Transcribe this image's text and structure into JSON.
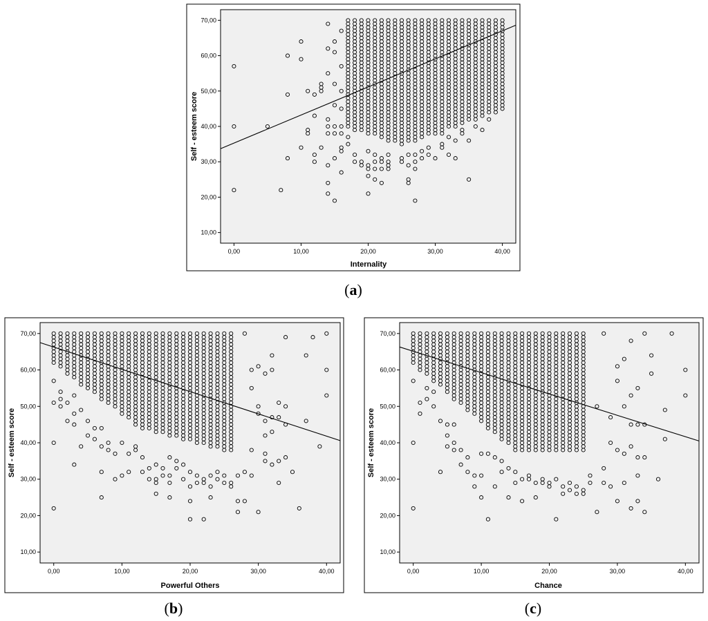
{
  "chart_data": [
    {
      "type": "scatter",
      "panel_label": "(a)",
      "panel_letter": "a",
      "xlabel": "Internality",
      "ylabel": "Self - esteem score",
      "xlim": [
        -2,
        42
      ],
      "ylim": [
        7,
        73
      ],
      "xticks": [
        0,
        10,
        20,
        30,
        40
      ],
      "xtick_labels": [
        "0,00",
        "10,00",
        "20,00",
        "30,00",
        "40,00"
      ],
      "yticks": [
        10,
        20,
        30,
        40,
        50,
        60,
        70
      ],
      "ytick_labels": [
        "10,00",
        "20,00",
        "30,00",
        "40,00",
        "50,00",
        "60,00",
        "70,00"
      ],
      "fit_line": {
        "x": [
          -2,
          42
        ],
        "y": [
          33.7,
          68.6
        ]
      },
      "dense": {
        "x_range": [
          17,
          40
        ],
        "y_max": 70,
        "y_min_ends": [
          40,
          45
        ],
        "y_min_mid": 35,
        "y_min_mid_x": 25
      },
      "points": [
        [
          0,
          57
        ],
        [
          0,
          40
        ],
        [
          0,
          22
        ],
        [
          5,
          40
        ],
        [
          7,
          22
        ],
        [
          8,
          60
        ],
        [
          8,
          49
        ],
        [
          8,
          31
        ],
        [
          10,
          64
        ],
        [
          10,
          59
        ],
        [
          10,
          34
        ],
        [
          11,
          50
        ],
        [
          11,
          39
        ],
        [
          11,
          38
        ],
        [
          12,
          49
        ],
        [
          12,
          43
        ],
        [
          12,
          32
        ],
        [
          12,
          30
        ],
        [
          13,
          52
        ],
        [
          13,
          51
        ],
        [
          13,
          50
        ],
        [
          13,
          34
        ],
        [
          14,
          69
        ],
        [
          14,
          62
        ],
        [
          14,
          55
        ],
        [
          14,
          42
        ],
        [
          14,
          40
        ],
        [
          14,
          38
        ],
        [
          14,
          29
        ],
        [
          14,
          24
        ],
        [
          14,
          21
        ],
        [
          15,
          64
        ],
        [
          15,
          61
        ],
        [
          15,
          52
        ],
        [
          15,
          46
        ],
        [
          15,
          40
        ],
        [
          15,
          38
        ],
        [
          15,
          31
        ],
        [
          15,
          19
        ],
        [
          16,
          67
        ],
        [
          16,
          57
        ],
        [
          16,
          50
        ],
        [
          16,
          45
        ],
        [
          16,
          40
        ],
        [
          16,
          38
        ],
        [
          16,
          34
        ],
        [
          16,
          33
        ],
        [
          16,
          27
        ],
        [
          17,
          69
        ],
        [
          17,
          62
        ],
        [
          17,
          37
        ],
        [
          17,
          35
        ],
        [
          18,
          32
        ],
        [
          18,
          30
        ],
        [
          19,
          30
        ],
        [
          19,
          29
        ],
        [
          20,
          33
        ],
        [
          20,
          29
        ],
        [
          20,
          28
        ],
        [
          20,
          26
        ],
        [
          20,
          21
        ],
        [
          21,
          32
        ],
        [
          21,
          30
        ],
        [
          21,
          28
        ],
        [
          21,
          25
        ],
        [
          22,
          31
        ],
        [
          22,
          30
        ],
        [
          22,
          28
        ],
        [
          22,
          24
        ],
        [
          23,
          32
        ],
        [
          23,
          30
        ],
        [
          23,
          29
        ],
        [
          23,
          28
        ],
        [
          25,
          31
        ],
        [
          25,
          30
        ],
        [
          26,
          32
        ],
        [
          26,
          29
        ],
        [
          26,
          25
        ],
        [
          26,
          24
        ],
        [
          27,
          32
        ],
        [
          27,
          30
        ],
        [
          27,
          28
        ],
        [
          27,
          19
        ],
        [
          28,
          33
        ],
        [
          28,
          31
        ],
        [
          29,
          34
        ],
        [
          29,
          32
        ],
        [
          30,
          31
        ],
        [
          31,
          38
        ],
        [
          31,
          35
        ],
        [
          31,
          34
        ],
        [
          32,
          37
        ],
        [
          32,
          32
        ],
        [
          33,
          36
        ],
        [
          33,
          31
        ],
        [
          34,
          39
        ],
        [
          34,
          38
        ],
        [
          35,
          36
        ],
        [
          35,
          25
        ],
        [
          36,
          40
        ],
        [
          37,
          39
        ],
        [
          38,
          42
        ],
        [
          39,
          58
        ],
        [
          39,
          53
        ],
        [
          40,
          60
        ],
        [
          40,
          53
        ]
      ]
    },
    {
      "type": "scatter",
      "panel_label": "(b)",
      "panel_letter": "b",
      "xlabel": "Powerful Others",
      "ylabel": "Self - esteem score",
      "xlim": [
        -2,
        42
      ],
      "ylim": [
        7,
        73
      ],
      "xticks": [
        0,
        10,
        20,
        30,
        40
      ],
      "xtick_labels": [
        "0,00",
        "10,00",
        "20,00",
        "30,00",
        "40,00"
      ],
      "yticks": [
        10,
        20,
        30,
        40,
        50,
        60,
        70
      ],
      "ytick_labels": [
        "10,00",
        "20,00",
        "30,00",
        "40,00",
        "50,00",
        "60,00",
        "70,00"
      ],
      "fit_line": {
        "x": [
          -2,
          42
        ],
        "y": [
          67.5,
          40.6
        ]
      },
      "dense": {
        "x_range": [
          0,
          26
        ],
        "y_max": 70,
        "y_min_ends": [
          62,
          38
        ],
        "y_min_mid": 44,
        "y_min_mid_x": 13
      },
      "points": [
        [
          0,
          57
        ],
        [
          0,
          51
        ],
        [
          0,
          40
        ],
        [
          0,
          22
        ],
        [
          1,
          54
        ],
        [
          1,
          52
        ],
        [
          1,
          50
        ],
        [
          2,
          51
        ],
        [
          2,
          46
        ],
        [
          3,
          53
        ],
        [
          3,
          48
        ],
        [
          3,
          45
        ],
        [
          3,
          34
        ],
        [
          4,
          49
        ],
        [
          4,
          39
        ],
        [
          5,
          46
        ],
        [
          5,
          42
        ],
        [
          6,
          44
        ],
        [
          6,
          41
        ],
        [
          7,
          44
        ],
        [
          7,
          39
        ],
        [
          7,
          32
        ],
        [
          7,
          25
        ],
        [
          8,
          40
        ],
        [
          8,
          38
        ],
        [
          9,
          37
        ],
        [
          9,
          30
        ],
        [
          10,
          40
        ],
        [
          10,
          31
        ],
        [
          11,
          37
        ],
        [
          11,
          32
        ],
        [
          12,
          39
        ],
        [
          12,
          38
        ],
        [
          13,
          36
        ],
        [
          13,
          32
        ],
        [
          14,
          33
        ],
        [
          14,
          30
        ],
        [
          15,
          34
        ],
        [
          15,
          30
        ],
        [
          15,
          29
        ],
        [
          15,
          26
        ],
        [
          16,
          33
        ],
        [
          16,
          31
        ],
        [
          17,
          36
        ],
        [
          17,
          31
        ],
        [
          17,
          29
        ],
        [
          17,
          25
        ],
        [
          18,
          35
        ],
        [
          18,
          33
        ],
        [
          19,
          34
        ],
        [
          19,
          30
        ],
        [
          20,
          32
        ],
        [
          20,
          28
        ],
        [
          20,
          24
        ],
        [
          20,
          19
        ],
        [
          21,
          31
        ],
        [
          21,
          29
        ],
        [
          22,
          30
        ],
        [
          22,
          29
        ],
        [
          22,
          19
        ],
        [
          23,
          31
        ],
        [
          23,
          28
        ],
        [
          23,
          25
        ],
        [
          24,
          32
        ],
        [
          24,
          30
        ],
        [
          25,
          31
        ],
        [
          25,
          29
        ],
        [
          26,
          29
        ],
        [
          26,
          28
        ],
        [
          27,
          31
        ],
        [
          27,
          24
        ],
        [
          27,
          21
        ],
        [
          28,
          70
        ],
        [
          28,
          32
        ],
        [
          28,
          24
        ],
        [
          29,
          60
        ],
        [
          29,
          55
        ],
        [
          29,
          38
        ],
        [
          29,
          31
        ],
        [
          30,
          61
        ],
        [
          30,
          50
        ],
        [
          30,
          48
        ],
        [
          30,
          21
        ],
        [
          31,
          59
        ],
        [
          31,
          46
        ],
        [
          31,
          42
        ],
        [
          31,
          37
        ],
        [
          31,
          35
        ],
        [
          32,
          64
        ],
        [
          32,
          60
        ],
        [
          32,
          47
        ],
        [
          32,
          43
        ],
        [
          32,
          34
        ],
        [
          33,
          51
        ],
        [
          33,
          47
        ],
        [
          33,
          35
        ],
        [
          33,
          29
        ],
        [
          34,
          69
        ],
        [
          34,
          50
        ],
        [
          34,
          45
        ],
        [
          34,
          36
        ],
        [
          35,
          32
        ],
        [
          36,
          22
        ],
        [
          37,
          64
        ],
        [
          37,
          46
        ],
        [
          38,
          69
        ],
        [
          39,
          39
        ],
        [
          40,
          70
        ],
        [
          40,
          60
        ],
        [
          40,
          53
        ]
      ]
    },
    {
      "type": "scatter",
      "panel_label": "(c)",
      "panel_letter": "c",
      "xlabel": "Chance",
      "ylabel": "Self - esteem score",
      "xlim": [
        -2,
        42
      ],
      "ylim": [
        7,
        73
      ],
      "xticks": [
        0,
        10,
        20,
        30,
        40
      ],
      "xtick_labels": [
        "0,00",
        "10,00",
        "20,00",
        "30,00",
        "40,00"
      ],
      "yticks": [
        10,
        20,
        30,
        40,
        50,
        60,
        70
      ],
      "ytick_labels": [
        "10,00",
        "20,00",
        "30,00",
        "40,00",
        "50,00",
        "60,00",
        "70,00"
      ],
      "fit_line": {
        "x": [
          -2,
          42
        ],
        "y": [
          66.3,
          40.5
        ]
      },
      "dense": {
        "x_range": [
          0,
          25
        ],
        "y_max": 70,
        "y_min_ends": [
          62,
          38
        ],
        "y_min_mid": 38,
        "y_min_mid_x": 15
      },
      "points": [
        [
          0,
          57
        ],
        [
          0,
          40
        ],
        [
          0,
          22
        ],
        [
          1,
          51
        ],
        [
          1,
          48
        ],
        [
          2,
          55
        ],
        [
          2,
          52
        ],
        [
          3,
          54
        ],
        [
          3,
          50
        ],
        [
          4,
          46
        ],
        [
          4,
          32
        ],
        [
          5,
          45
        ],
        [
          5,
          42
        ],
        [
          5,
          39
        ],
        [
          6,
          45
        ],
        [
          6,
          40
        ],
        [
          6,
          38
        ],
        [
          7,
          38
        ],
        [
          7,
          34
        ],
        [
          8,
          36
        ],
        [
          8,
          32
        ],
        [
          9,
          31
        ],
        [
          9,
          28
        ],
        [
          10,
          37
        ],
        [
          10,
          31
        ],
        [
          10,
          25
        ],
        [
          11,
          37
        ],
        [
          11,
          19
        ],
        [
          12,
          36
        ],
        [
          12,
          28
        ],
        [
          13,
          35
        ],
        [
          13,
          32
        ],
        [
          14,
          33
        ],
        [
          14,
          25
        ],
        [
          15,
          32
        ],
        [
          15,
          29
        ],
        [
          16,
          30
        ],
        [
          16,
          24
        ],
        [
          17,
          31
        ],
        [
          17,
          30
        ],
        [
          18,
          29
        ],
        [
          18,
          25
        ],
        [
          19,
          30
        ],
        [
          19,
          29
        ],
        [
          20,
          29
        ],
        [
          20,
          28
        ],
        [
          21,
          30
        ],
        [
          21,
          19
        ],
        [
          22,
          28
        ],
        [
          22,
          26
        ],
        [
          23,
          29
        ],
        [
          23,
          27
        ],
        [
          24,
          28
        ],
        [
          24,
          26
        ],
        [
          25,
          27
        ],
        [
          25,
          26
        ],
        [
          26,
          31
        ],
        [
          26,
          29
        ],
        [
          27,
          50
        ],
        [
          27,
          21
        ],
        [
          28,
          70
        ],
        [
          28,
          33
        ],
        [
          28,
          29
        ],
        [
          29,
          47
        ],
        [
          29,
          40
        ],
        [
          29,
          28
        ],
        [
          30,
          61
        ],
        [
          30,
          57
        ],
        [
          30,
          38
        ],
        [
          30,
          24
        ],
        [
          31,
          63
        ],
        [
          31,
          50
        ],
        [
          31,
          37
        ],
        [
          31,
          29
        ],
        [
          32,
          68
        ],
        [
          32,
          53
        ],
        [
          32,
          45
        ],
        [
          32,
          39
        ],
        [
          32,
          22
        ],
        [
          33,
          55
        ],
        [
          33,
          45
        ],
        [
          33,
          36
        ],
        [
          33,
          31
        ],
        [
          33,
          24
        ],
        [
          34,
          70
        ],
        [
          34,
          45
        ],
        [
          34,
          36
        ],
        [
          34,
          21
        ],
        [
          35,
          64
        ],
        [
          35,
          59
        ],
        [
          36,
          30
        ],
        [
          37,
          49
        ],
        [
          37,
          41
        ],
        [
          38,
          70
        ],
        [
          40,
          60
        ],
        [
          40,
          53
        ]
      ]
    }
  ]
}
